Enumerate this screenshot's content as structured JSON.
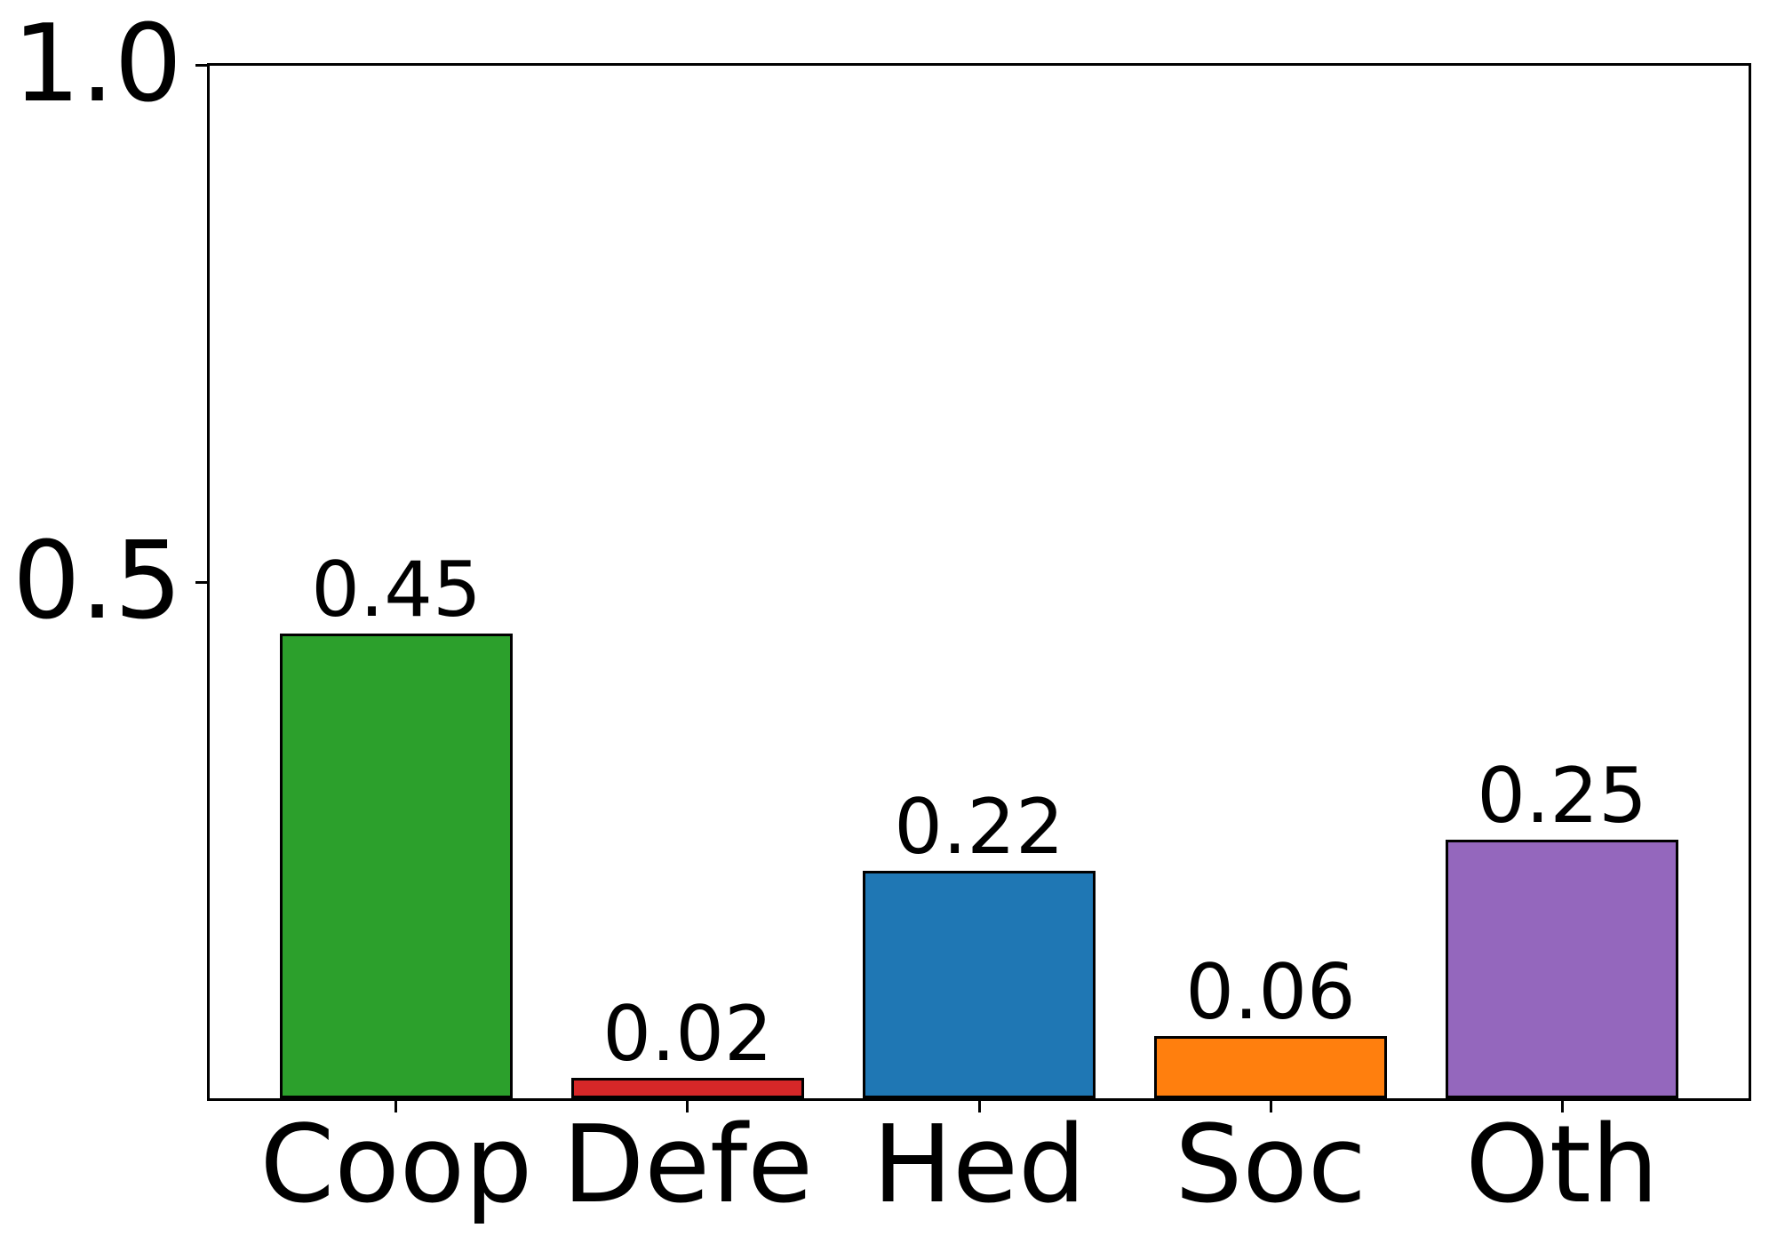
{
  "figure": {
    "background": "#ffffff",
    "text_color": "#000000"
  },
  "chart_data": {
    "type": "bar",
    "categories": [
      "Coop",
      "Defe",
      "Hed",
      "Soc",
      "Oth"
    ],
    "values": [
      0.45,
      0.02,
      0.22,
      0.06,
      0.25
    ],
    "bar_value_labels": [
      "0.45",
      "0.02",
      "0.22",
      "0.06",
      "0.25"
    ],
    "bar_colors": [
      "#2ca02c",
      "#d62728",
      "#1f77b4",
      "#ff7f0e",
      "#9467bd"
    ],
    "bar_edge_color": "#000000",
    "title": "",
    "xlabel": "",
    "ylabel": "",
    "ylim": [
      0,
      1.0
    ],
    "ytick_labels": [
      "1.0",
      "0.5"
    ],
    "ytick_values": [
      1.0,
      0.5
    ],
    "grid": false,
    "legend_position": "none"
  }
}
